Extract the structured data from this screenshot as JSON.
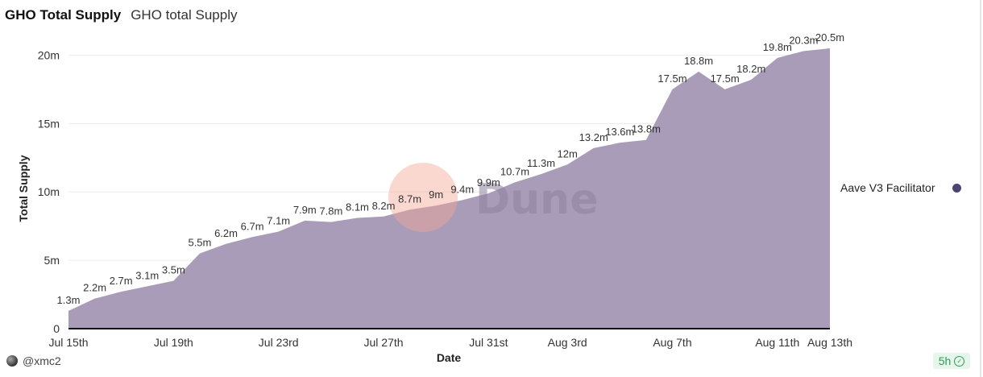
{
  "header": {
    "title": "GHO Total Supply",
    "subtitle": "GHO total Supply"
  },
  "chart_data": {
    "type": "area",
    "title": "GHO Total Supply",
    "xlabel": "Date",
    "ylabel": "Total Supply",
    "ylim": [
      0,
      20.5
    ],
    "yticks": [
      0,
      5,
      10,
      15,
      20
    ],
    "ytick_labels": [
      "0",
      "5m",
      "10m",
      "15m",
      "20m"
    ],
    "xtick_labels": [
      "Jul 15th",
      "Jul 19th",
      "Jul 23rd",
      "Jul 27th",
      "Jul 31st",
      "Aug 3rd",
      "Aug 7th",
      "Aug 11th",
      "Aug 13th"
    ],
    "xtick_index": [
      0,
      4,
      8,
      12,
      16,
      19,
      23,
      27,
      29
    ],
    "legend_position": "right",
    "grid": true,
    "series": [
      {
        "name": "Aave V3 Facilitator",
        "color": "#a89cb8",
        "values": [
          1.3,
          2.2,
          2.7,
          3.1,
          3.5,
          5.5,
          6.2,
          6.7,
          7.1,
          7.9,
          7.8,
          8.1,
          8.2,
          8.7,
          9,
          9.4,
          9.9,
          10.7,
          11.3,
          12,
          13.2,
          13.6,
          13.8,
          17.5,
          18.8,
          17.5,
          18.2,
          19.8,
          20.3,
          20.5
        ],
        "labels": [
          "1.3m",
          "2.2m",
          "2.7m",
          "3.1m",
          "3.5m",
          "5.5m",
          "6.2m",
          "6.7m",
          "7.1m",
          "7.9m",
          "7.8m",
          "8.1m",
          "8.2m",
          "8.7m",
          "9m",
          "9.4m",
          "9.9m",
          "10.7m",
          "11.3m",
          "12m",
          "13.2m",
          "13.6m",
          "13.8m",
          "17.5m",
          "18.8m",
          "17.5m",
          "18.2m",
          "19.8m",
          "20.3m",
          "20.5m"
        ]
      }
    ],
    "watermark": "Dune"
  },
  "legend": {
    "label": "Aave V3 Facilitator",
    "swatch_color": "#4a4470"
  },
  "footer": {
    "user": "@xmc2",
    "refresh": "5h"
  }
}
